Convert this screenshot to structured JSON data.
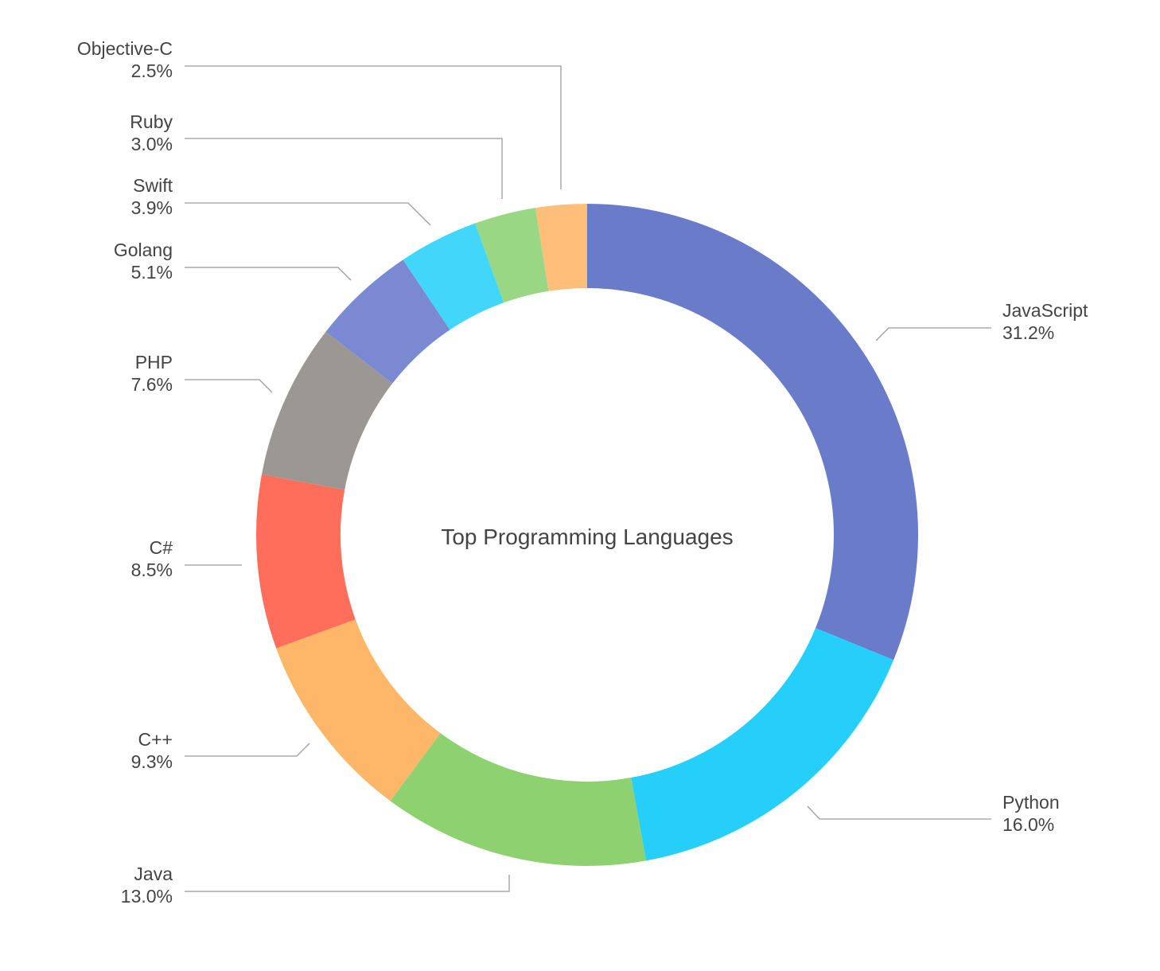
{
  "chart_data": {
    "type": "pie",
    "title": "Top Programming Languages",
    "legend": "none",
    "labels": [
      "JavaScript",
      "Python",
      "Java",
      "C++",
      "C#",
      "PHP",
      "Golang",
      "Swift",
      "Ruby",
      "Objective-C"
    ],
    "values": [
      31.2,
      16.0,
      13.0,
      9.3,
      8.5,
      7.6,
      5.1,
      3.9,
      3.0,
      2.5
    ],
    "value_labels": [
      "31.2%",
      "16.0%",
      "13.0%",
      "9.3%",
      "8.5%",
      "7.6%",
      "5.1%",
      "3.9%",
      "3.0%",
      "2.5%"
    ],
    "colors": [
      "#6a7cc9",
      "#26cffa",
      "#8ed171",
      "#feb668",
      "#ff6e5a",
      "#9b9792",
      "#7a89d2",
      "#42d6fb",
      "#99d784",
      "#ffbe79"
    ]
  }
}
